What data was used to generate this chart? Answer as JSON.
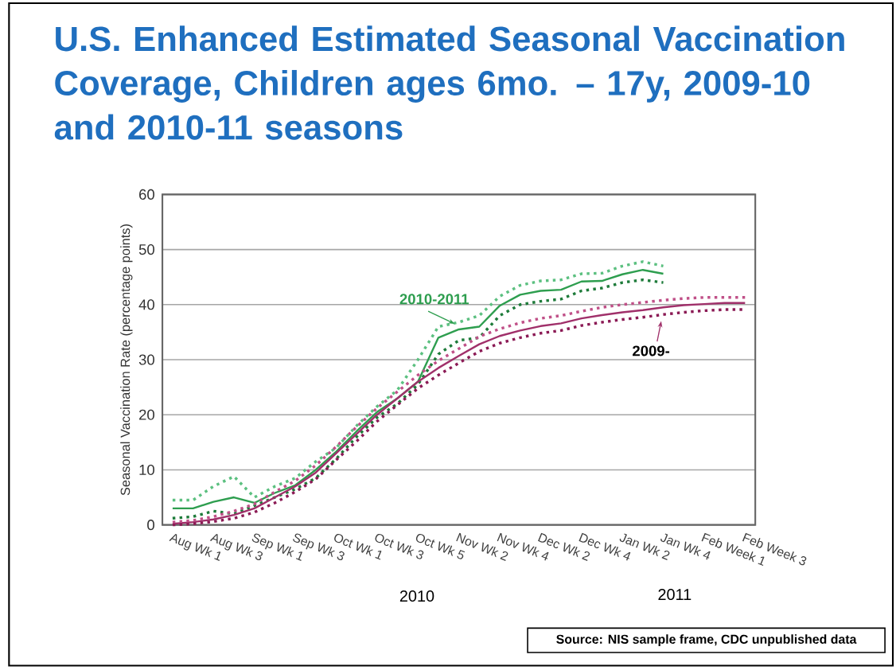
{
  "chart_data": {
    "type": "line",
    "title": "U.S. Enhanced Estimated Seasonal Vaccination Coverage, Children ages 6mo. – 17y, 2009-10 and 2010-11 seasons",
    "ylabel": "Seasonal Vaccination Rate (percentage points)",
    "categories": [
      "Aug Wk 1",
      null,
      "Aug Wk 3",
      null,
      "Sep Wk 1",
      null,
      "Sep Wk 3",
      null,
      "Oct Wk 1",
      null,
      "Oct Wk 3",
      null,
      "Oct Wk 5",
      null,
      "Nov Wk 2",
      null,
      "Nov Wk 4",
      null,
      "Dec Wk 2",
      null,
      "Dec Wk 4",
      null,
      "Jan Wk 2",
      null,
      "Jan Wk 4",
      null,
      "Feb Week 1",
      null,
      "Feb Week 3"
    ],
    "series": [
      {
        "name": "2010-2011",
        "color": "#2e9e4f",
        "line_style": "solid",
        "values": [
          3.0,
          3.0,
          4.2,
          5.0,
          4.0,
          5.8,
          7.2,
          10.0,
          13.3,
          17.0,
          20.5,
          23.0,
          26.0,
          34.0,
          35.5,
          36.0,
          39.8,
          41.8,
          42.5,
          42.7,
          44.2,
          44.3,
          45.5,
          46.3,
          45.6,
          null,
          null,
          null,
          null
        ]
      },
      {
        "color": "#5cc080",
        "line_style": "dotted",
        "values": [
          4.5,
          4.5,
          7.0,
          8.8,
          5.0,
          7.0,
          8.5,
          11.5,
          14.0,
          18.0,
          21.5,
          24.5,
          30.0,
          36.0,
          36.8,
          38.0,
          41.5,
          43.5,
          44.3,
          44.5,
          45.6,
          45.7,
          47.0,
          47.8,
          47.0,
          null,
          null,
          null,
          null
        ]
      },
      {
        "color": "#1e7b3a",
        "line_style": "dotted",
        "values": [
          1.2,
          1.5,
          2.5,
          2.0,
          3.5,
          5.0,
          6.5,
          8.5,
          12.0,
          16.0,
          19.5,
          22.0,
          25.5,
          31.0,
          33.5,
          34.0,
          38.0,
          40.0,
          40.6,
          41.0,
          42.5,
          43.0,
          44.0,
          44.5,
          44.0,
          null,
          null,
          null,
          null
        ]
      },
      {
        "name": "2009-",
        "color": "#a0306a",
        "line_style": "solid",
        "values": [
          0.2,
          0.5,
          1.0,
          1.8,
          3.0,
          5.0,
          7.0,
          9.5,
          13.0,
          16.5,
          20.0,
          23.0,
          26.0,
          28.5,
          30.7,
          32.8,
          34.3,
          35.3,
          36.1,
          36.6,
          37.5,
          38.1,
          38.6,
          39.0,
          39.5,
          39.9,
          40.1,
          40.3,
          40.3
        ]
      },
      {
        "color": "#c05088",
        "line_style": "dotted",
        "values": [
          0.5,
          0.8,
          1.5,
          2.5,
          3.8,
          6.0,
          8.0,
          10.8,
          14.2,
          17.8,
          21.2,
          24.2,
          27.2,
          29.8,
          32.0,
          34.2,
          35.6,
          36.7,
          37.5,
          38.0,
          38.8,
          39.5,
          40.0,
          40.4,
          40.8,
          41.1,
          41.3,
          41.3,
          41.3
        ]
      },
      {
        "color": "#8b1a55",
        "line_style": "dotted",
        "values": [
          0.0,
          0.2,
          0.6,
          1.2,
          2.3,
          4.0,
          6.0,
          8.3,
          11.8,
          15.2,
          18.8,
          21.8,
          24.8,
          27.2,
          29.4,
          31.5,
          33.0,
          34.0,
          34.8,
          35.3,
          36.2,
          36.8,
          37.3,
          37.7,
          38.2,
          38.6,
          38.9,
          39.1,
          39.1
        ]
      }
    ],
    "ylim": [
      0,
      60
    ],
    "yticks": [
      0,
      10,
      20,
      30,
      40,
      50,
      60
    ],
    "grid": "y",
    "annotations": [
      "2010",
      "2011",
      "Source:  NIS sample frame, CDC unpublished data"
    ]
  }
}
